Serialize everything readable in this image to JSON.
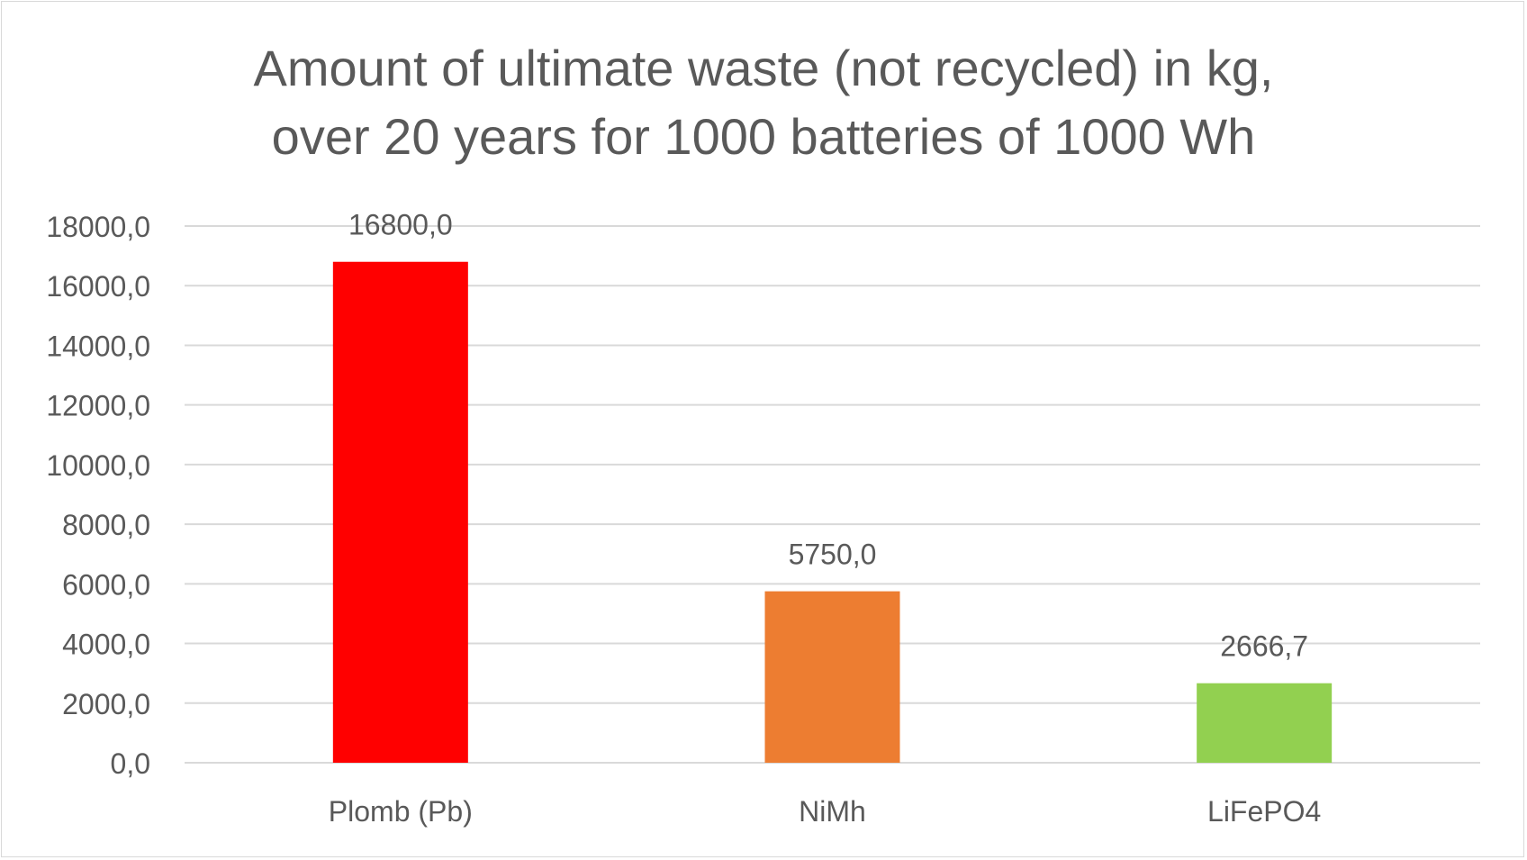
{
  "chart_data": {
    "type": "bar",
    "title_lines": [
      "Amount of ultimate waste (not recycled) in kg,",
      "over 20 years for 1000 batteries of 1000 Wh"
    ],
    "categories": [
      "Plomb (Pb)",
      "NiMh",
      "LiFePO4"
    ],
    "values": [
      16800.0,
      5750.0,
      2666.7
    ],
    "data_labels": [
      "16800,0",
      "5750,0",
      "2666,7"
    ],
    "bar_colors": [
      "#ff0000",
      "#ed7d31",
      "#92d050"
    ],
    "xlabel": "",
    "ylabel": "",
    "ylim": [
      0,
      18000
    ],
    "yticks": [
      0,
      2000,
      4000,
      6000,
      8000,
      10000,
      12000,
      14000,
      16000,
      18000
    ],
    "ytick_labels": [
      "0,0",
      "2000,0",
      "4000,0",
      "6000,0",
      "8000,0",
      "10000,0",
      "12000,0",
      "14000,0",
      "16000,0",
      "18000,0"
    ],
    "grid": true,
    "legend": "none"
  },
  "colors": {
    "text": "#595959",
    "gridline": "#d9d9d9",
    "border": "#d9d9d9"
  }
}
